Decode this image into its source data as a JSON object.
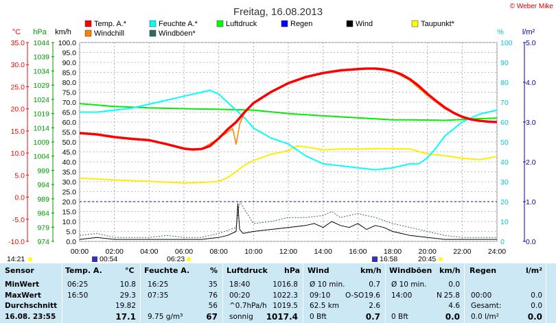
{
  "chart_data": {
    "type": "line",
    "title": "Freitag, 16.08.2013",
    "credit": "© Weber Mike",
    "x_ticks": [
      "00:00",
      "02:00",
      "04:00",
      "06:00",
      "08:00",
      "10:00",
      "12:00",
      "14:00",
      "16:00",
      "18:00",
      "20:00",
      "22:00",
      "24:00"
    ],
    "xlim": [
      0,
      24
    ],
    "axes": {
      "temp": {
        "label": "°C",
        "ticks": [
          "35.0",
          "30.0",
          "25.0",
          "20.0",
          "15.0",
          "10.0",
          "5.0",
          "0.0",
          "-5.0",
          "-10.0"
        ],
        "range": [
          -10,
          35
        ],
        "color": "#ff0000"
      },
      "pressure": {
        "label": "hPa",
        "ticks": [
          "1044",
          "1039",
          "1034",
          "1029",
          "1024",
          "1019",
          "1014",
          "1009",
          "1004",
          "999",
          "994",
          "989",
          "984",
          "979",
          "974"
        ],
        "range": [
          974,
          1044
        ],
        "color": "#009900"
      },
      "wind": {
        "label": "km/h",
        "ticks": [
          "100.0",
          "95.0",
          "90.0",
          "85.0",
          "80.0",
          "75.0",
          "70.0",
          "65.0",
          "60.0",
          "55.0",
          "50.0",
          "45.0",
          "40.0",
          "35.0",
          "30.0",
          "25.0",
          "20.0",
          "15.0",
          "10.0",
          "5.0",
          "0.0"
        ],
        "range": [
          0,
          100
        ],
        "color": "#000000"
      },
      "humidity": {
        "label": "%",
        "ticks": [
          "100",
          "90",
          "80",
          "70",
          "60",
          "50",
          "40",
          "30",
          "20",
          "10",
          "0"
        ],
        "range": [
          0,
          100
        ],
        "color": "#00cccc"
      },
      "rain": {
        "label": "l/m²",
        "ticks": [
          "5.0",
          "4.0",
          "3.0",
          "2.0",
          "1.0",
          "0.0"
        ],
        "range": [
          0,
          5
        ],
        "color": "#000099"
      }
    },
    "legend": [
      {
        "name": "Temp. A.*",
        "color": "#ff0000"
      },
      {
        "name": "Feuchte A.*",
        "color": "#00ffff"
      },
      {
        "name": "Luftdruck",
        "color": "#00ff00"
      },
      {
        "name": "Regen",
        "color": "#0000ff"
      },
      {
        "name": "Wind",
        "color": "#000000"
      },
      {
        "name": "Taupunkt*",
        "color": "#ffff00"
      },
      {
        "name": "Windchill",
        "color": "#ff8000"
      },
      {
        "name": "Windböen*",
        "color": "#336666"
      }
    ],
    "series": [
      {
        "name": "Temp. A.*",
        "axis": "temp",
        "color": "#ff0000",
        "x": [
          0,
          1,
          2,
          3,
          4,
          5,
          6,
          6.5,
          7,
          7.5,
          8,
          8.5,
          9,
          9.5,
          10,
          11,
          12,
          13,
          14,
          15,
          16,
          16.5,
          17,
          17.5,
          18,
          18.5,
          19,
          19.5,
          20,
          20.5,
          21,
          21.5,
          22,
          22.5,
          23,
          23.5,
          24
        ],
        "y": [
          14.5,
          14.2,
          13.6,
          13.2,
          12.9,
          12.0,
          11.0,
          10.8,
          10.9,
          11.6,
          13.3,
          15.3,
          17.0,
          19.3,
          21.3,
          23.8,
          25.8,
          27.2,
          28.1,
          28.7,
          29.0,
          29.1,
          29.1,
          28.9,
          28.5,
          27.8,
          26.7,
          25.2,
          23.4,
          21.8,
          20.3,
          19.1,
          18.2,
          17.6,
          17.3,
          17.1,
          17.0
        ]
      },
      {
        "name": "Windchill",
        "axis": "temp",
        "color": "#ff8000",
        "x": [
          0,
          2,
          4,
          6,
          7,
          8,
          8.8,
          9.0,
          9.2,
          9.5,
          10,
          12,
          14,
          16,
          17,
          18,
          19,
          20,
          21,
          22,
          23,
          24
        ],
        "y": [
          14.5,
          13.6,
          12.9,
          11.0,
          10.9,
          13.3,
          15.5,
          12.0,
          16.5,
          19.3,
          21.3,
          25.9,
          28.1,
          29.0,
          29.0,
          28.5,
          26.4,
          23.0,
          20.0,
          18.1,
          17.3,
          17.0
        ]
      },
      {
        "name": "Feuchte A.*",
        "axis": "humidity",
        "color": "#00ffff",
        "x": [
          0,
          1,
          2,
          3,
          4,
          5,
          6,
          7,
          7.5,
          8,
          8.5,
          9,
          9.5,
          10,
          11,
          12,
          13,
          14,
          15,
          16,
          17,
          18,
          19,
          19.5,
          20,
          20.5,
          21,
          22,
          23,
          24
        ],
        "y": [
          65,
          65,
          66,
          67,
          69,
          71,
          73,
          75,
          76,
          74,
          70,
          66,
          62,
          57,
          52,
          49,
          43,
          39,
          38,
          37,
          36,
          37,
          39,
          39,
          42,
          47,
          53,
          60,
          64,
          66
        ]
      },
      {
        "name": "Luftdruck",
        "axis": "pressure",
        "color": "#00ee00",
        "x": [
          0,
          2,
          4,
          6,
          8,
          10,
          12,
          14,
          16,
          18,
          19,
          20,
          21,
          22,
          23,
          24
        ],
        "y": [
          1022.5,
          1021.5,
          1021.0,
          1020.7,
          1020.5,
          1020.2,
          1019.0,
          1018.2,
          1017.5,
          1016.8,
          1016.8,
          1016.7,
          1016.6,
          1016.9,
          1017.2,
          1017.4
        ]
      },
      {
        "name": "Taupunkt*",
        "axis": "temp",
        "color": "#ffee00",
        "x": [
          0,
          2,
          4,
          6,
          7,
          8,
          8.5,
          9,
          9.5,
          10,
          11,
          12,
          12.5,
          13,
          14,
          15,
          16,
          17,
          18,
          19,
          20,
          21,
          22,
          23,
          24
        ],
        "y": [
          4.3,
          3.9,
          3.6,
          3.2,
          3.3,
          3.6,
          4.4,
          5.8,
          7.3,
          8.3,
          9.7,
          10.5,
          11.6,
          11.4,
          10.7,
          10.9,
          10.9,
          11.0,
          11.0,
          10.9,
          9.8,
          9.4,
          8.8,
          8.5,
          9.2
        ]
      },
      {
        "name": "Wind",
        "axis": "wind",
        "color": "#000000",
        "x": [
          0,
          1,
          2,
          3,
          4,
          5,
          6,
          7,
          8,
          8.5,
          9,
          9.1,
          9.2,
          9.4,
          10,
          11,
          12,
          13,
          13.5,
          14,
          14.5,
          15,
          15.5,
          16,
          16.5,
          17,
          17.5,
          18,
          18.5,
          19,
          20,
          21,
          22,
          23,
          24
        ],
        "y": [
          1,
          2,
          1,
          1,
          1,
          1,
          1,
          1,
          2,
          3,
          5,
          19,
          6,
          4,
          5,
          6,
          7,
          8,
          9,
          7,
          10,
          8,
          7,
          9,
          6,
          8,
          7,
          5,
          4,
          3,
          2,
          1,
          1,
          1,
          1
        ]
      },
      {
        "name": "Windböen*",
        "axis": "wind",
        "color": "#336666",
        "x": [
          0,
          1,
          2,
          3,
          4,
          5,
          6,
          7,
          8,
          9,
          9.2,
          10,
          11,
          12,
          13,
          14,
          14.5,
          15,
          16,
          17,
          18,
          19,
          20,
          21,
          22,
          23,
          24
        ],
        "y": [
          3,
          4,
          2,
          2,
          2,
          3,
          2,
          2,
          4,
          7,
          20,
          9,
          10,
          12,
          12,
          13,
          15,
          12,
          14,
          12,
          9,
          7,
          5,
          3,
          2,
          2,
          2
        ]
      }
    ],
    "rain_baseline": 1.0,
    "markers": [
      {
        "label": "14:21",
        "axis": "x"
      },
      {
        "label": "00:54",
        "axis": "x"
      },
      {
        "label": "06:23",
        "axis": "x"
      },
      {
        "label": "16:58",
        "axis": "x"
      },
      {
        "label": "20:45",
        "axis": "x"
      }
    ]
  },
  "table": {
    "sensor": {
      "header": "Sensor",
      "rows": [
        "MinWert",
        "MaxWert",
        "Durchschnitt",
        "16.08.  23:55"
      ]
    },
    "temp": {
      "header": "Temp. A.",
      "unit": "°C",
      "times": [
        "06:25",
        "16:50",
        "",
        ""
      ],
      "values": [
        "10.8",
        "29.3",
        "19.82",
        "17.1"
      ]
    },
    "humidity": {
      "header": "Feuchte A.",
      "unit": "%",
      "times": [
        "16:25",
        "07:35",
        "",
        "9.75 g/m³"
      ],
      "values": [
        "35",
        "76",
        "56",
        "67"
      ]
    },
    "pressure": {
      "header": "Luftdruck",
      "unit": "hPa",
      "times": [
        "18:40",
        "00:20",
        "^0.7hPa/h",
        "sonnig"
      ],
      "values": [
        "1016.8",
        "1022.3",
        "1019.5",
        "1017.4"
      ]
    },
    "wind": {
      "header": "Wind",
      "unit": "km/h",
      "left": [
        "Ø 10 min.",
        "09:10",
        "62.5 km",
        "0 Bft"
      ],
      "mid": [
        "",
        "O-SO",
        "",
        ""
      ],
      "values": [
        "0.7",
        "19.6",
        "2.6",
        "0.7"
      ]
    },
    "gusts": {
      "header": "Windböen",
      "unit": "km/h",
      "left": [
        "Ø 10 min.",
        "14:00",
        "",
        "0 Bft"
      ],
      "mid": [
        "",
        "N",
        "",
        ""
      ],
      "values": [
        "0.0",
        "25.8",
        "4.6",
        "0.0"
      ]
    },
    "rain": {
      "header": "Regen",
      "unit": "l/m²",
      "left": [
        "",
        "00:00",
        "Gesamt:",
        "0.0 l/m²"
      ],
      "values": [
        "",
        "0.0",
        "0.0",
        "0.0"
      ]
    }
  }
}
